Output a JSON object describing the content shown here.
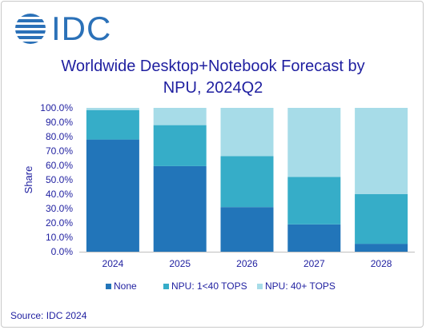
{
  "brand": {
    "logo_text": "IDC"
  },
  "chart_data": {
    "type": "bar",
    "stacked": true,
    "title_line1": "Worldwide Desktop+Notebook Forecast by",
    "title_line2": "NPU, 2024Q2",
    "ylabel": "Share",
    "xlabel": "",
    "ylim": [
      0,
      100
    ],
    "yticks": [
      "0.0%",
      "10.0%",
      "20.0%",
      "30.0%",
      "40.0%",
      "50.0%",
      "60.0%",
      "70.0%",
      "80.0%",
      "90.0%",
      "100.0%"
    ],
    "categories": [
      "2024",
      "2025",
      "2026",
      "2027",
      "2028"
    ],
    "series": [
      {
        "name": "None",
        "color": "#2275b9",
        "values": [
          78,
          59.5,
          31,
          19,
          5.5
        ]
      },
      {
        "name": "NPU: 1<40 TOPS",
        "color": "#36adc8",
        "values": [
          20.5,
          28.5,
          35.5,
          33,
          34.5
        ]
      },
      {
        "name": "NPU: 40+ TOPS",
        "color": "#a7dce8",
        "values": [
          1.5,
          12,
          33.5,
          48,
          60
        ]
      }
    ],
    "legend_position": "bottom",
    "grid": false
  },
  "source": "Source: IDC 2024"
}
